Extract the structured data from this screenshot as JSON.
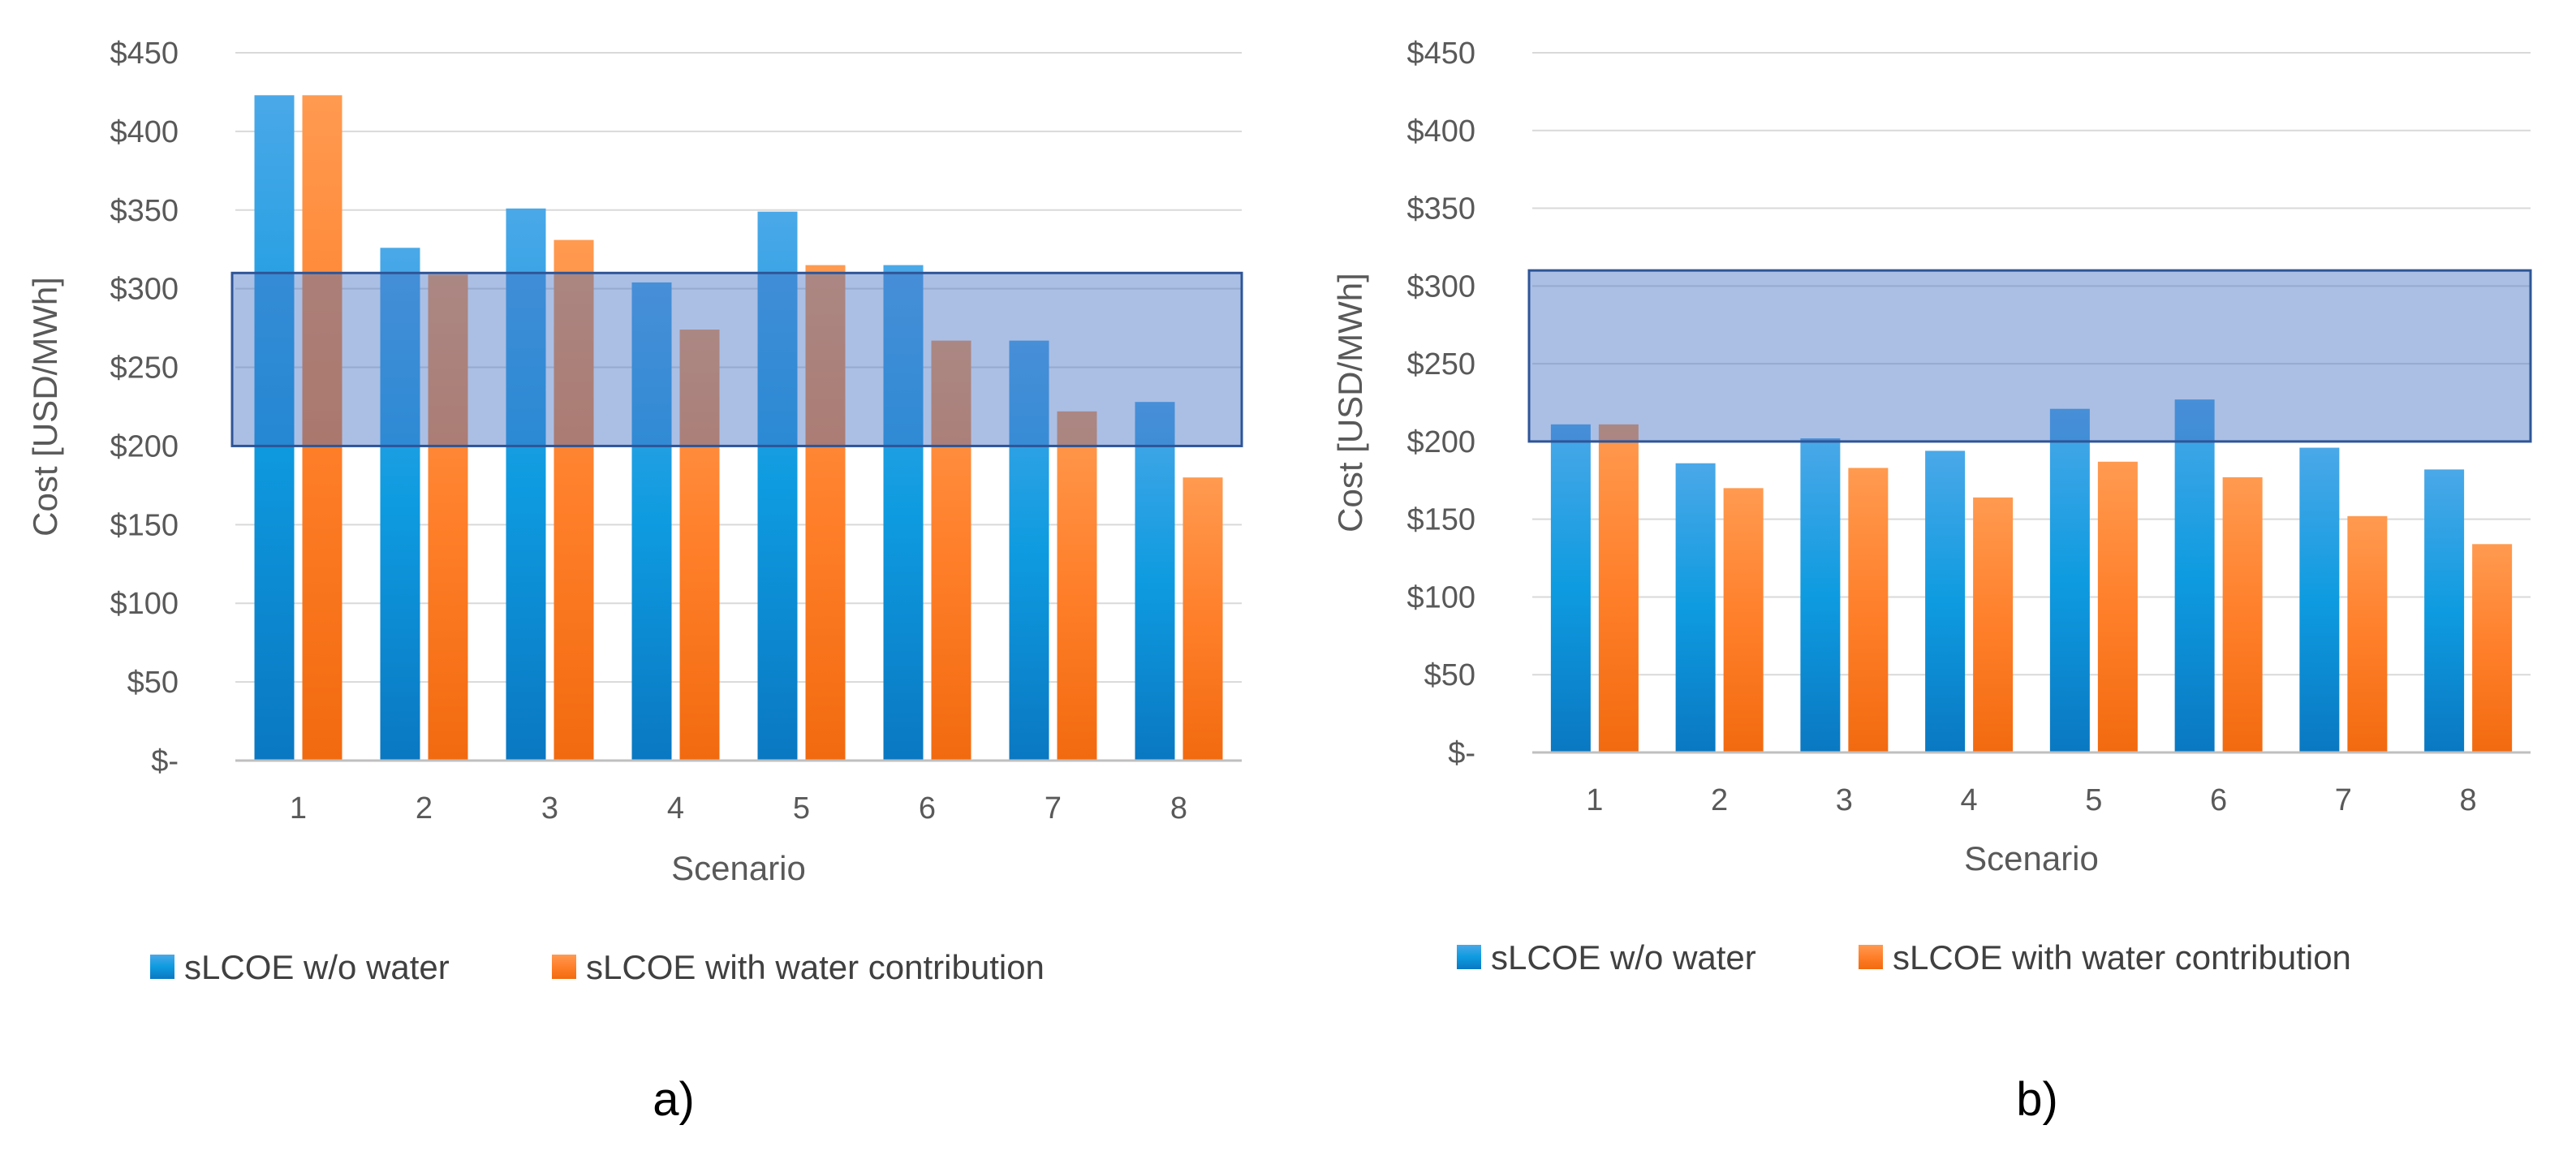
{
  "chart_data": [
    {
      "type": "bar",
      "panel_label": "a)",
      "xlabel": "Scenario",
      "ylabel": "Cost [USD/MWh]",
      "ylim": [
        0,
        450
      ],
      "yticks": [
        0,
        50,
        100,
        150,
        200,
        250,
        300,
        350,
        400,
        450
      ],
      "ytick_labels": [
        "$-",
        "$50",
        "$100",
        "$150",
        "$200",
        "$250",
        "$300",
        "$350",
        "$400",
        "$450"
      ],
      "categories": [
        "1",
        "2",
        "3",
        "4",
        "5",
        "6",
        "7",
        "8"
      ],
      "series": [
        {
          "name": "sLCOE w/o water",
          "color": "#1f8fd8",
          "values": [
            423,
            326,
            351,
            304,
            349,
            315,
            267,
            228
          ]
        },
        {
          "name": "sLCOE with water contribution",
          "color": "#ff7f2a",
          "values": [
            423,
            309,
            331,
            274,
            315,
            267,
            222,
            180
          ]
        }
      ],
      "highlight_band": {
        "ymin": 200,
        "ymax": 310,
        "color": "#4472c4"
      },
      "grid": true,
      "legend": "bottom"
    },
    {
      "type": "bar",
      "panel_label": "b)",
      "xlabel": "Scenario",
      "ylabel": "Cost [USD/MWh]",
      "ylim": [
        0,
        450
      ],
      "yticks": [
        0,
        50,
        100,
        150,
        200,
        250,
        300,
        350,
        400,
        450
      ],
      "ytick_labels": [
        "$-",
        "$50",
        "$100",
        "$150",
        "$200",
        "$250",
        "$300",
        "$350",
        "$400",
        "$450"
      ],
      "categories": [
        "1",
        "2",
        "3",
        "4",
        "5",
        "6",
        "7",
        "8"
      ],
      "series": [
        {
          "name": "sLCOE w/o water",
          "color": "#1f8fd8",
          "values": [
            211,
            186,
            202,
            194,
            221,
            227,
            196,
            182
          ]
        },
        {
          "name": "sLCOE with water contribution",
          "color": "#ff7f2a",
          "values": [
            211,
            170,
            183,
            164,
            187,
            177,
            152,
            134
          ]
        }
      ],
      "highlight_band": {
        "ymin": 200,
        "ymax": 310,
        "color": "#4472c4"
      },
      "grid": true,
      "legend": "bottom"
    }
  ]
}
